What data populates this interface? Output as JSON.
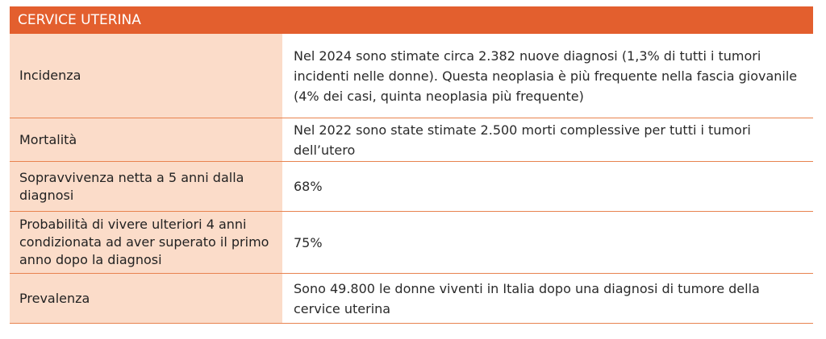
{
  "table": {
    "title": "CERVICE UTERINA",
    "rows": [
      {
        "label": "Incidenza",
        "value": "Nel 2024 sono stimate circa 2.382 nuove diagnosi (1,3% di tutti i tumori incidenti nelle donne). Questa neoplasia è più frequente nella fascia giovanile (4% dei casi, quinta neoplasia più frequente)"
      },
      {
        "label": "Mortalità",
        "value": "Nel 2022 sono state stimate 2.500 morti complessive per tutti i tumori dell’utero"
      },
      {
        "label": "Sopravvivenza netta a 5 anni dalla diagnosi",
        "value": "68%"
      },
      {
        "label": "Probabilità di vivere ulteriori 4 anni condizionata ad aver superato il primo anno dopo la diagnosi",
        "value": "75%"
      },
      {
        "label": "Prevalenza",
        "value": "Sono 49.800 le donne viventi in Italia dopo una diagnosi di tumore della cervice uterina"
      }
    ]
  }
}
